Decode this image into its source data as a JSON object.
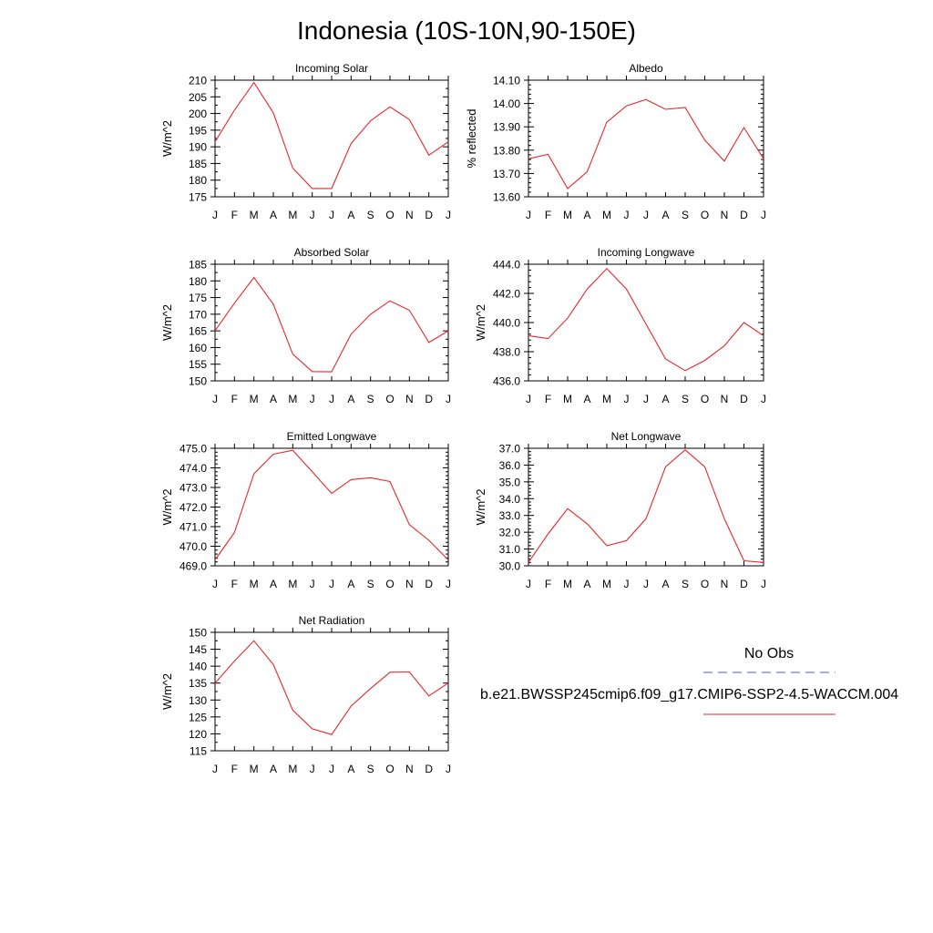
{
  "title": "Indonesia (10S-10N,90-150E)",
  "legend": {
    "obs_label": "No Obs",
    "model_label": "b.e21.BWSSP245cmip6.f09_g17.CMIP6-SSP2-4.5-WACCM.004",
    "obs_color": "#5555ee",
    "model_color": "#e8262a"
  },
  "chart_data": [
    {
      "type": "line",
      "title": "Incoming Solar",
      "ylabel": "W/m^2",
      "categories": [
        "J",
        "F",
        "M",
        "A",
        "M",
        "J",
        "J",
        "A",
        "S",
        "O",
        "N",
        "D",
        "J"
      ],
      "values": [
        191.5,
        201.0,
        209.3,
        200.2,
        183.6,
        177.5,
        177.5,
        191.0,
        197.8,
        202.0,
        198.2,
        187.5,
        191.5
      ],
      "ylim": [
        175,
        210
      ],
      "yticks": [
        "175",
        "180",
        "185",
        "190",
        "195",
        "200",
        "205",
        "210"
      ],
      "yminor": 1
    },
    {
      "type": "line",
      "title": "Albedo",
      "ylabel": "% reflected",
      "categories": [
        "J",
        "F",
        "M",
        "A",
        "M",
        "J",
        "J",
        "A",
        "S",
        "O",
        "N",
        "D",
        "J"
      ],
      "values": [
        13.763,
        13.782,
        13.635,
        13.708,
        13.92,
        13.99,
        14.017,
        13.975,
        13.983,
        13.843,
        13.753,
        13.897,
        13.763
      ],
      "ylim": [
        13.6,
        14.1
      ],
      "yticks": [
        "13.60",
        "13.70",
        "13.80",
        "13.90",
        "14.00",
        "14.10"
      ],
      "yminor": 4
    },
    {
      "type": "line",
      "title": "Absorbed Solar",
      "ylabel": "W/m^2",
      "categories": [
        "J",
        "F",
        "M",
        "A",
        "M",
        "J",
        "J",
        "A",
        "S",
        "O",
        "N",
        "D",
        "J"
      ],
      "values": [
        165.0,
        173.3,
        181.0,
        173.0,
        158.0,
        152.8,
        152.7,
        164.0,
        170.0,
        174.0,
        171.2,
        161.5,
        165.0
      ],
      "ylim": [
        150,
        185
      ],
      "yticks": [
        "150",
        "155",
        "160",
        "165",
        "170",
        "175",
        "180",
        "185"
      ],
      "yminor": 1
    },
    {
      "type": "line",
      "title": "Incoming Longwave",
      "ylabel": "W/m^2",
      "categories": [
        "J",
        "F",
        "M",
        "A",
        "M",
        "J",
        "J",
        "A",
        "S",
        "O",
        "N",
        "D",
        "J"
      ],
      "values": [
        439.1,
        438.9,
        440.3,
        442.3,
        443.7,
        442.3,
        439.9,
        437.5,
        436.7,
        437.4,
        438.4,
        440.0,
        439.1
      ],
      "ylim": [
        436,
        444
      ],
      "yticks": [
        "436.0",
        "438.0",
        "440.0",
        "442.0",
        "444.0"
      ],
      "yminor": 4
    },
    {
      "type": "line",
      "title": "Emitted Longwave",
      "ylabel": "W/m^2",
      "categories": [
        "J",
        "F",
        "M",
        "A",
        "M",
        "J",
        "J",
        "A",
        "S",
        "O",
        "N",
        "D",
        "J"
      ],
      "values": [
        469.3,
        470.7,
        473.7,
        474.7,
        474.9,
        473.8,
        472.7,
        473.4,
        473.5,
        473.3,
        471.1,
        470.3,
        469.3
      ],
      "ylim": [
        469,
        475
      ],
      "yticks": [
        "469.0",
        "470.0",
        "471.0",
        "472.0",
        "473.0",
        "474.0",
        "475.0"
      ],
      "yminor": 4
    },
    {
      "type": "line",
      "title": "Net Longwave",
      "ylabel": "W/m^2",
      "categories": [
        "J",
        "F",
        "M",
        "A",
        "M",
        "J",
        "J",
        "A",
        "S",
        "O",
        "N",
        "D",
        "J"
      ],
      "values": [
        30.2,
        31.9,
        33.4,
        32.5,
        31.2,
        31.5,
        32.8,
        35.9,
        36.9,
        35.9,
        32.8,
        30.3,
        30.2
      ],
      "ylim": [
        30,
        37
      ],
      "yticks": [
        "30.0",
        "31.0",
        "32.0",
        "33.0",
        "34.0",
        "35.0",
        "36.0",
        "37.0"
      ],
      "yminor": 4
    },
    {
      "type": "line",
      "title": "Net Radiation",
      "ylabel": "W/m^2",
      "categories": [
        "J",
        "F",
        "M",
        "A",
        "M",
        "J",
        "J",
        "A",
        "S",
        "O",
        "N",
        "D",
        "J"
      ],
      "values": [
        135.0,
        141.5,
        147.5,
        140.5,
        127.0,
        121.5,
        119.8,
        128.2,
        133.4,
        138.2,
        138.3,
        131.2,
        135.0
      ],
      "ylim": [
        115,
        150
      ],
      "yticks": [
        "115",
        "120",
        "125",
        "130",
        "135",
        "140",
        "145",
        "150"
      ],
      "yminor": 1
    }
  ]
}
